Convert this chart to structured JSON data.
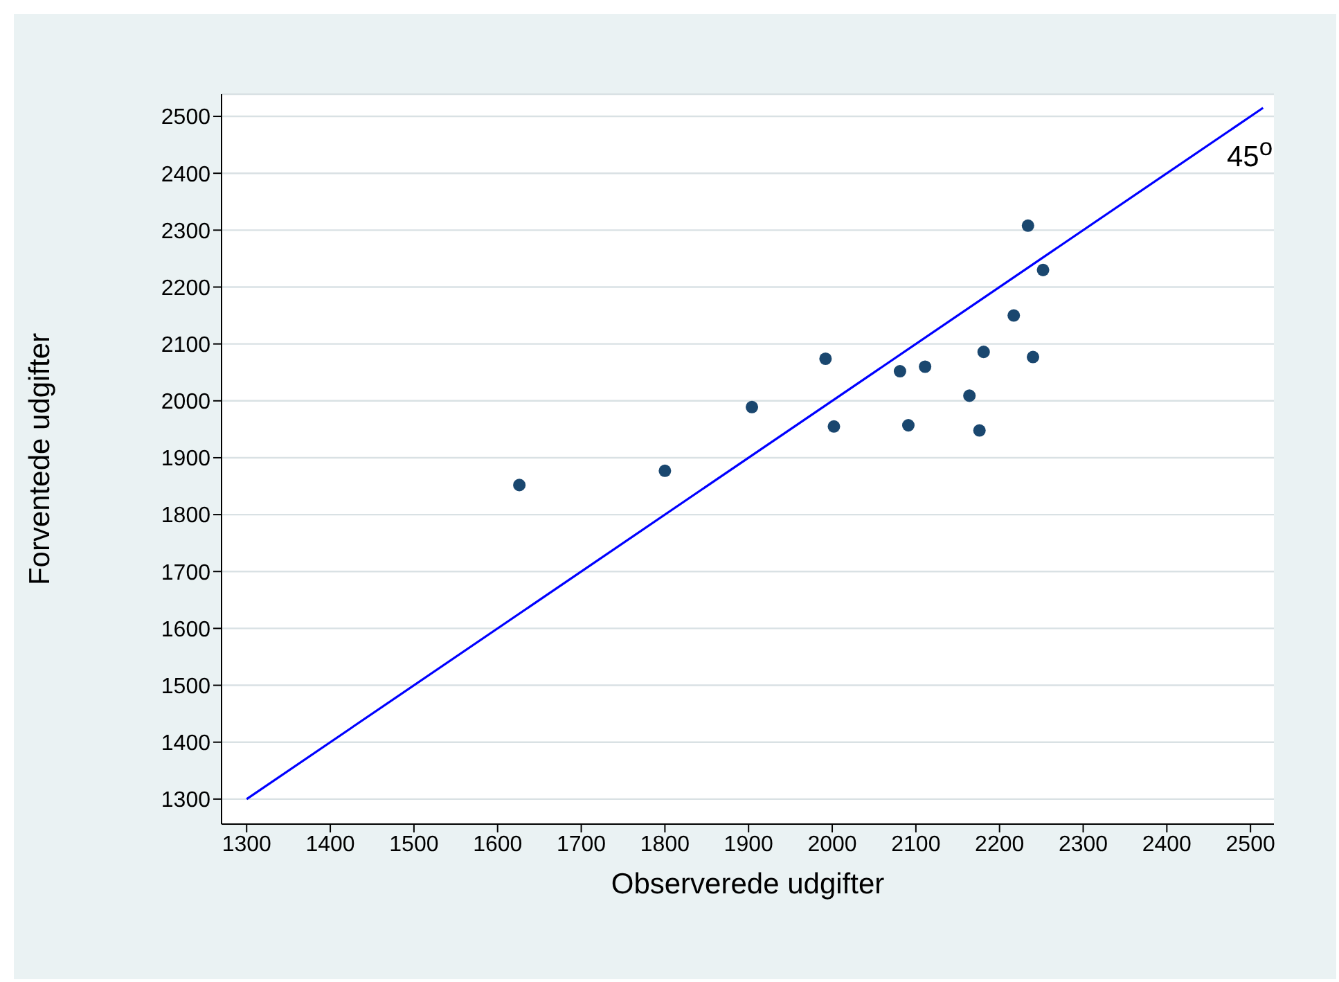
{
  "chart_data": {
    "type": "scatter",
    "xlabel": "Observerede udgifter",
    "ylabel": "Forventede udgifter",
    "xlim": [
      1270,
      2528
    ],
    "ylim": [
      1256,
      2539
    ],
    "xticks": [
      1300,
      1400,
      1500,
      1600,
      1700,
      1800,
      1900,
      2000,
      2100,
      2200,
      2300,
      2400,
      2500
    ],
    "yticks": [
      1300,
      1400,
      1500,
      1600,
      1700,
      1800,
      1900,
      2000,
      2100,
      2200,
      2300,
      2400,
      2500
    ],
    "grid": "y",
    "marker": "circle",
    "legend": false,
    "annotations": [
      "45$^{o}$"
    ],
    "series": [
      {
        "color": "#1a476f",
        "x": [
          1626,
          1800,
          1904,
          1992,
          2002,
          2081,
          2091,
          2111,
          2164,
          2176,
          2181,
          2217,
          2234,
          2240,
          2252
        ],
        "values": [
          1852,
          1877,
          1989,
          2074,
          1955,
          2052,
          1957,
          2060,
          2009,
          1948,
          2086,
          2150,
          2308,
          2077,
          2230
        ]
      },
      {
        "type": "line",
        "color": "#0000ff",
        "marker": "none",
        "line_style": "solid",
        "x": [
          1300,
          2515
        ],
        "values": [
          1300,
          2515
        ]
      }
    ]
  }
}
